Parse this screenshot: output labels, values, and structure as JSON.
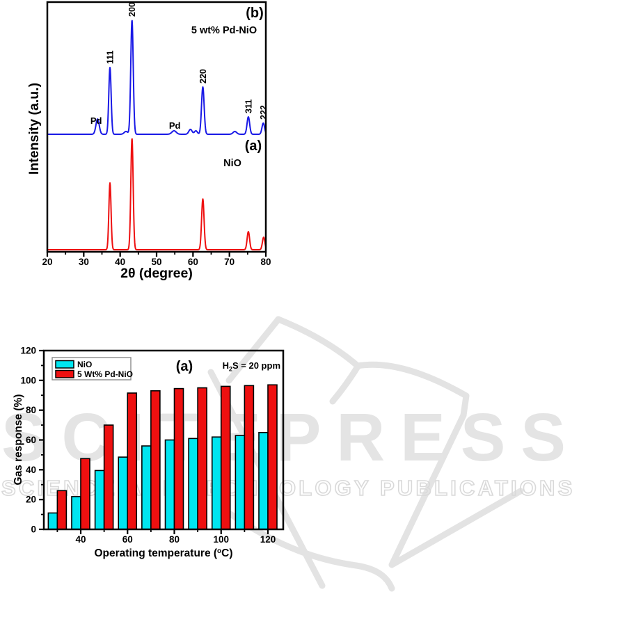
{
  "watermark": {
    "brand": "SCITEPRESS",
    "subtitle": "SCIENCE AND TECHNOLOGY PUBLICATIONS",
    "color": "#e4e4e4",
    "outline_color": "#d9d9d9"
  },
  "chart_data": [
    {
      "type": "line",
      "id": "xrd-pattern",
      "xlabel": "2θ (degree)",
      "ylabel": "Intensity (a.u.)",
      "xlim": [
        20,
        80
      ],
      "x_major_ticks": [
        20,
        30,
        40,
        50,
        60,
        70,
        80
      ],
      "x_minor_ticks": [
        25,
        35,
        45,
        55,
        65,
        75
      ],
      "grid": false,
      "series": [
        {
          "name": "5 wt% Pd-NiO",
          "panel_label": "(b)",
          "color": "#1919e6",
          "peaks": [
            {
              "two_theta": 33.8,
              "intensity": 22,
              "width": 0.45
            },
            {
              "two_theta": 37.2,
              "intensity": 96,
              "width": 0.32,
              "hkl": "111"
            },
            {
              "two_theta": 41.6,
              "intensity": 4,
              "width": 0.5
            },
            {
              "two_theta": 43.25,
              "intensity": 164,
              "width": 0.34,
              "hkl": "200"
            },
            {
              "two_theta": 54.8,
              "intensity": 5,
              "width": 0.6
            },
            {
              "two_theta": 59.3,
              "intensity": 7,
              "width": 0.45
            },
            {
              "two_theta": 60.8,
              "intensity": 5,
              "width": 0.4
            },
            {
              "two_theta": 62.7,
              "intensity": 68,
              "width": 0.36,
              "hkl": "220"
            },
            {
              "two_theta": 71.5,
              "intensity": 4,
              "width": 0.5
            },
            {
              "two_theta": 75.2,
              "intensity": 25,
              "width": 0.36,
              "hkl": "311"
            },
            {
              "two_theta": 79.3,
              "intensity": 16,
              "width": 0.36,
              "hkl": "222"
            }
          ]
        },
        {
          "name": "NiO",
          "panel_label": "(a)",
          "color": "#ee1010",
          "peaks": [
            {
              "two_theta": 37.2,
              "intensity": 96,
              "width": 0.3
            },
            {
              "two_theta": 43.25,
              "intensity": 160,
              "width": 0.32
            },
            {
              "two_theta": 62.7,
              "intensity": 73,
              "width": 0.34
            },
            {
              "two_theta": 75.2,
              "intensity": 26,
              "width": 0.34
            },
            {
              "two_theta": 79.4,
              "intensity": 18,
              "width": 0.34
            }
          ]
        }
      ],
      "annotations": [
        {
          "label": "Pd",
          "x": 33.4
        },
        {
          "label": "Pd",
          "x": 55.0
        }
      ]
    },
    {
      "type": "bar",
      "id": "gas-response",
      "xlabel": "Operating temperature (°C)",
      "xlabel_parts": [
        "Operating temperature (",
        "o",
        "C)"
      ],
      "ylabel": "Gas response (%)",
      "ylim": [
        0,
        120
      ],
      "y_major_step": 20,
      "y_minor_step": 10,
      "categories": [
        30,
        40,
        50,
        60,
        70,
        80,
        90,
        100,
        110,
        120
      ],
      "x_labeled_ticks": [
        40,
        60,
        80,
        100,
        120
      ],
      "x_minor_ticks": [
        30,
        50,
        70,
        90,
        110
      ],
      "series": [
        {
          "name": "NiO",
          "color": "#00e5f0",
          "values": [
            11,
            22,
            39.5,
            48.5,
            56,
            60,
            61,
            62,
            63,
            65
          ]
        },
        {
          "name": "5 Wt% Pd-NiO",
          "color": "#ee1010",
          "values": [
            26,
            47.5,
            70,
            91.5,
            93,
            94.5,
            95,
            96,
            96.5,
            97
          ]
        }
      ],
      "panel_label": "(a)",
      "annotation": {
        "prefix": "H",
        "sub": "2",
        "suffix": "S = 20 ppm"
      },
      "legend_position": "top-left",
      "bar_edge_color": "#000000"
    }
  ]
}
